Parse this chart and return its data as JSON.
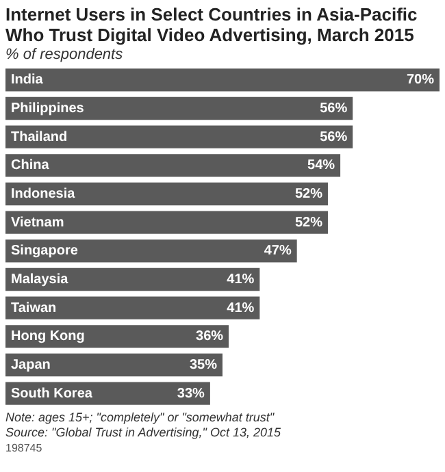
{
  "chart_data": {
    "type": "bar",
    "orientation": "horizontal",
    "title": "Internet Users in Select Countries in Asia-Pacific Who Trust Digital Video Advertising, March 2015",
    "subtitle": "% of respondents",
    "categories": [
      "India",
      "Philippines",
      "Thailand",
      "China",
      "Indonesia",
      "Vietnam",
      "Singapore",
      "Malaysia",
      "Taiwan",
      "Hong Kong",
      "Japan",
      "South Korea"
    ],
    "values": [
      70,
      56,
      56,
      54,
      52,
      52,
      47,
      41,
      41,
      36,
      35,
      33
    ],
    "value_labels": [
      "70%",
      "56%",
      "56%",
      "54%",
      "52%",
      "52%",
      "47%",
      "41%",
      "41%",
      "36%",
      "35%",
      "33%"
    ],
    "color": "#5a5a5a",
    "legend": false,
    "annotations": [
      "Note: ages 15+; \"completely\" or \"somewhat trust\"",
      "Source: \"Global Trust in Advertising,\" Oct 13, 2015",
      "198745"
    ]
  }
}
